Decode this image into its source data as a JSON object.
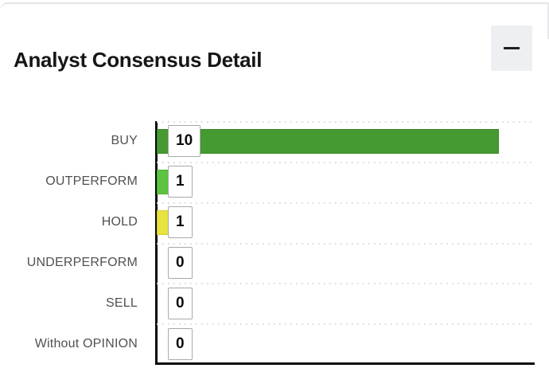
{
  "header": {
    "title": "Analyst Consensus Detail",
    "minimize_icon": "minus"
  },
  "chart_data": {
    "type": "bar",
    "orientation": "horizontal",
    "title": "Analyst Consensus Detail",
    "categories": [
      "BUY",
      "OUTPERFORM",
      "HOLD",
      "UNDERPERFORM",
      "SELL",
      "Without OPINION"
    ],
    "values": [
      10,
      1,
      1,
      0,
      0,
      0
    ],
    "value_labels_shown": true,
    "xlim": [
      0,
      11
    ],
    "grid": "dotted horizontal row separators",
    "axis_color": "#0a0a0a",
    "bar_fill_colors": [
      "#459a31",
      "#5cc440",
      "#e7e33f",
      null,
      null,
      null
    ],
    "bar_stroke_colors": [
      "#3a8829",
      "#4db135",
      "#d2cd2f",
      null,
      null,
      null
    ],
    "value_box_border_color": "#a9a9a9",
    "label_color": "#515153"
  }
}
